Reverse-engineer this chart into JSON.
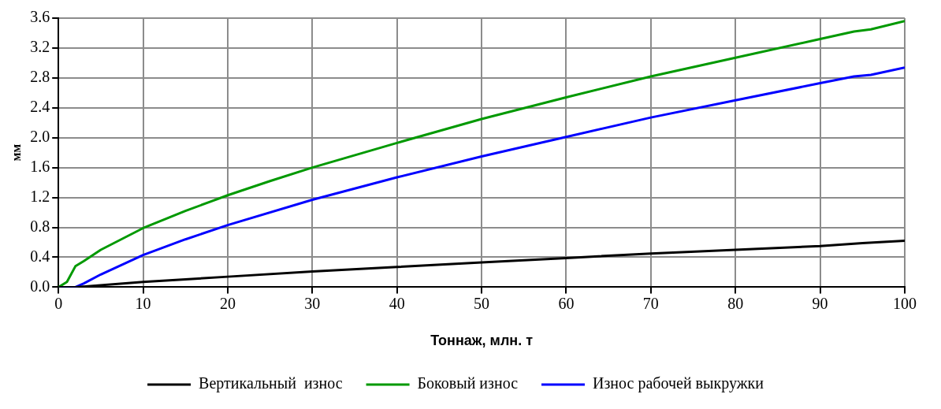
{
  "chart_data": {
    "type": "line",
    "xlabel": "Тоннаж, млн. т",
    "ylabel": "мм",
    "xlim": [
      0,
      100
    ],
    "xticks": [
      0,
      10,
      20,
      30,
      40,
      50,
      60,
      70,
      80,
      90,
      100
    ],
    "ylim": [
      0,
      3.6
    ],
    "yticks": [
      {
        "value": 0,
        "label": "0.0"
      },
      0.4,
      0.8,
      1.2,
      1.6,
      {
        "value": 2,
        "label": "2.0"
      },
      2.4,
      2.8,
      3.2,
      3.6
    ],
    "grid": true,
    "legend": "bottom",
    "marker": "none",
    "line_style": "solid",
    "series": [
      {
        "name": "Вертикальный  износ",
        "color": "#000000",
        "x": [
          0,
          2,
          10,
          20,
          30,
          40,
          50,
          60,
          70,
          80,
          90,
          95,
          100
        ],
        "values": [
          0,
          0,
          0.07,
          0.14,
          0.21,
          0.27,
          0.33,
          0.39,
          0.45,
          0.5,
          0.55,
          0.59,
          0.62
        ]
      },
      {
        "name": "Боковый износ",
        "color": "#009900",
        "x": [
          0,
          1,
          2,
          3,
          5,
          10,
          15,
          20,
          25,
          30,
          40,
          50,
          60,
          70,
          80,
          90,
          94,
          96,
          100
        ],
        "values": [
          0,
          0.07,
          0.28,
          0.35,
          0.5,
          0.79,
          1.02,
          1.23,
          1.42,
          1.6,
          1.93,
          2.25,
          2.54,
          2.82,
          3.07,
          3.32,
          3.42,
          3.45,
          3.56
        ]
      },
      {
        "name": "Износ рабочей выкружки",
        "color": "#0000ff",
        "x": [
          0,
          2,
          3,
          5,
          10,
          15,
          20,
          30,
          40,
          50,
          60,
          70,
          80,
          90,
          94,
          96,
          100
        ],
        "values": [
          0,
          0,
          0.05,
          0.17,
          0.43,
          0.64,
          0.83,
          1.17,
          1.47,
          1.75,
          2.01,
          2.27,
          2.5,
          2.73,
          2.82,
          2.84,
          2.94
        ]
      }
    ]
  }
}
